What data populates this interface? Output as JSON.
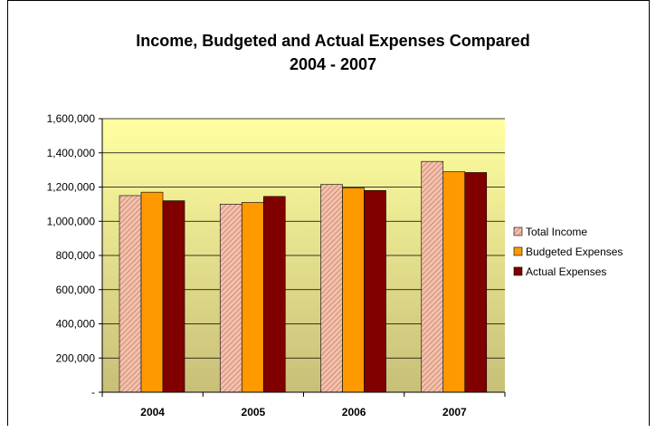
{
  "chart_data": {
    "type": "bar",
    "title": "Income, Budgeted and Actual Expenses Compared",
    "subtitle": "2004 - 2007",
    "categories": [
      "2004",
      "2005",
      "2006",
      "2007"
    ],
    "series": [
      {
        "name": "Total Income",
        "values": [
          1150000,
          1100000,
          1215000,
          1350000
        ],
        "color": "#E8A890",
        "pattern": "diagonal-hatch"
      },
      {
        "name": "Budgeted Expenses",
        "values": [
          1170000,
          1110000,
          1195000,
          1290000
        ],
        "color": "#FF9900"
      },
      {
        "name": "Actual Expenses",
        "values": [
          1120000,
          1145000,
          1180000,
          1285000
        ],
        "color": "#800000"
      }
    ],
    "ylim": [
      0,
      1600000
    ],
    "yticks": [
      0,
      200000,
      400000,
      600000,
      800000,
      1000000,
      1200000,
      1400000,
      1600000
    ],
    "ytick_labels": [
      "-",
      "200,000",
      "400,000",
      "600,000",
      "800,000",
      "1,000,000",
      "1,200,000",
      "1,400,000",
      "1,600,000"
    ],
    "grid": true,
    "legend_position": "right",
    "plot_background": [
      "#FFFFA0",
      "#C8BF78"
    ]
  }
}
